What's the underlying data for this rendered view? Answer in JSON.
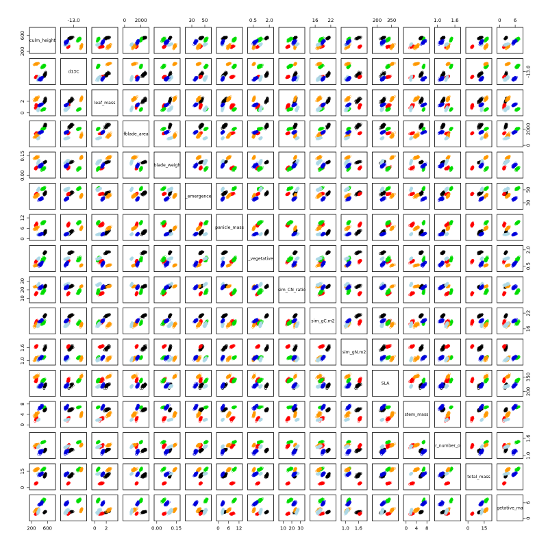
{
  "chart_data": {
    "type": "scatter",
    "title": "",
    "variables": [
      "culm_height",
      "d13C",
      "leaf_mass",
      "blade_area",
      "blade_weight",
      "emergence",
      "panicle_mass",
      "vegetative",
      "sim_CN_ratio",
      "sim_gC.m2",
      "sim_gN.m2",
      "SLA",
      "stem_mass",
      "number",
      "total_mass",
      "vegetative_mass"
    ],
    "diagonal_labels": [
      "culm_height",
      "d13C",
      "leaf_mass",
      "fblade_area",
      "blade_weigh",
      "_emergence",
      "panicle_mass",
      "_vegetative",
      "sim_CN_ratio",
      "sim_gC.m2",
      "sim_gN.m2",
      "SLA",
      "stem_mass",
      "r_number_o",
      "total_mass",
      "getative_ma"
    ],
    "axis_ticks": {
      "culm_height": [
        "200",
        "600"
      ],
      "d13C": [
        "-13.0"
      ],
      "leaf_mass": [
        "0",
        "2"
      ],
      "blade_area": [
        "0",
        "2000"
      ],
      "blade_weight": [
        "0.00",
        "0.15"
      ],
      "emergence": [
        "30",
        "50"
      ],
      "panicle_mass": [
        "0",
        "6",
        "12"
      ],
      "vegetative": [
        "0.5",
        "2.0"
      ],
      "sim_CN_ratio": [
        "10",
        "20",
        "30"
      ],
      "sim_gC.m2": [
        "16",
        "22"
      ],
      "sim_gN.m2": [
        "1.0",
        "1.6"
      ],
      "SLA": [
        "200",
        "350"
      ],
      "stem_mass": [
        "0",
        "4",
        "8"
      ],
      "number": [
        "1.0",
        "1.6"
      ],
      "total_mass": [
        "0",
        "15"
      ],
      "vegetative_mass": [
        "0",
        "6"
      ]
    },
    "series": [
      {
        "color": "#000000"
      },
      {
        "color": "#ff0000"
      },
      {
        "color": "#00dd00"
      },
      {
        "color": "#ff9900"
      },
      {
        "color": "#add8e6"
      },
      {
        "color": "#0000dd"
      }
    ],
    "points_per_series": 60,
    "ranges": {
      "culm_height": [
        150,
        800
      ],
      "d13C": [
        -14,
        -12
      ],
      "leaf_mass": [
        -0.5,
        4
      ],
      "blade_area": [
        -200,
        3000
      ],
      "blade_weight": [
        -0.02,
        0.18
      ],
      "emergence": [
        20,
        60
      ],
      "panicle_mass": [
        -1,
        14
      ],
      "vegetative": [
        0,
        2.4
      ],
      "sim_CN_ratio": [
        5,
        35
      ],
      "sim_gC.m2": [
        14,
        24
      ],
      "sim_gN.m2": [
        0.8,
        2
      ],
      "SLA": [
        150,
        420
      ],
      "stem_mass": [
        -1,
        9
      ],
      "number": [
        0.9,
        1.8
      ],
      "total_mass": [
        -2,
        22
      ],
      "vegetative_mass": [
        -1,
        9
      ]
    }
  }
}
